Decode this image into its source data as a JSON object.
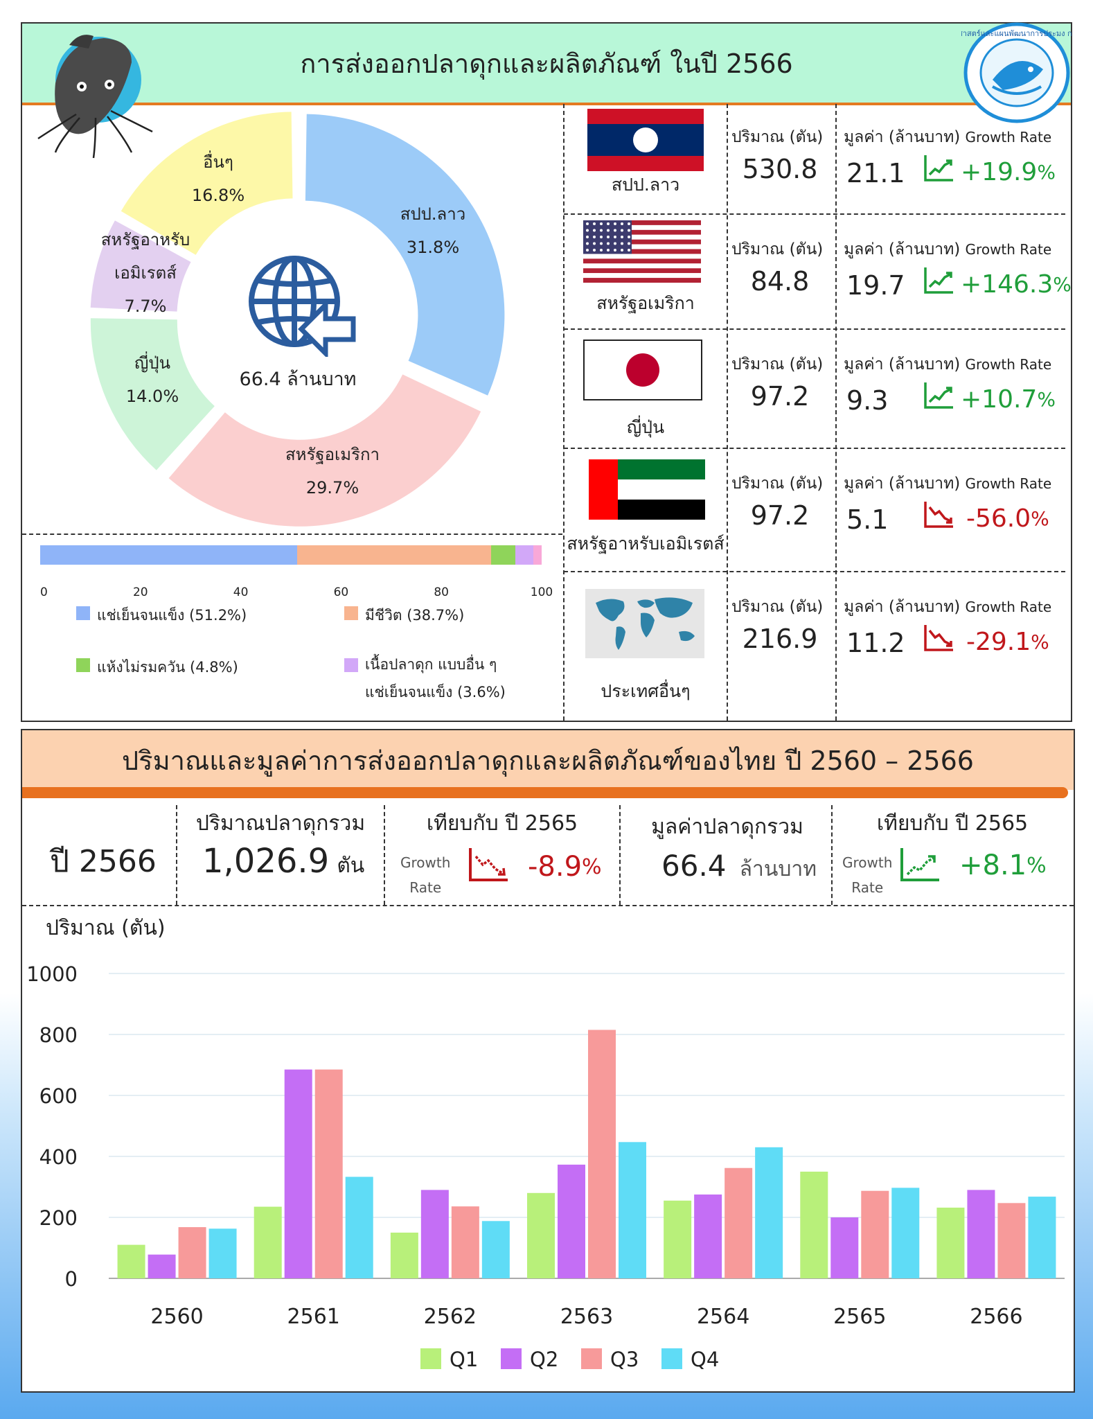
{
  "top": {
    "title": "การส่งออกปลาดุกและผลิตภัณฑ์ ในปี 2566",
    "center_value": "66.4 ล้านบาท",
    "logo_text": "กองยุทธศาสตร์และแผนพัฒนาการประมง กรมประมง"
  },
  "donut": {
    "slices": [
      {
        "name": "สปป.ลาว",
        "value": 31.8,
        "label": "31.8%",
        "color": "#9ccbf8"
      },
      {
        "name": "สหรัฐอเมริกา",
        "value": 29.7,
        "label": "29.7%",
        "color": "#fbcfcf"
      },
      {
        "name": "ญี่ปุ่น",
        "value": 14.0,
        "label": "14.0%",
        "color": "#cdf4d8"
      },
      {
        "name": "สหรัฐอาหรับเอมิเรตส์",
        "value": 7.7,
        "label": "7.7%",
        "color": "#e3d0f0"
      },
      {
        "name": "อื่นๆ",
        "value": 16.8,
        "label": "16.8%",
        "color": "#fdf8a8"
      }
    ],
    "label_lines": {
      "laos": "สปป.ลาว",
      "usa": "สหรัฐอเมริกา",
      "japan": "ญี่ปุ่น",
      "uae_1": "สหรัฐอาหรับ",
      "uae_2": "เอมิเรตส์",
      "others": "อื่นๆ"
    }
  },
  "stacked_bar": {
    "segments": [
      {
        "label": "แช่เย็นจนแข็ง (51.2%)",
        "value": 51.2,
        "color": "#8fb4f8"
      },
      {
        "label": "มีชีวิต (38.7%)",
        "value": 38.7,
        "color": "#f8b48f"
      },
      {
        "label": "แห้งไม่รมควัน (4.8%)",
        "value": 4.8,
        "color": "#8fd45a"
      },
      {
        "label": "เนื้อปลาดุก แบบอื่น ๆ",
        "label2": "แช่เย็นจนแข็ง (3.6%)",
        "value": 3.6,
        "color": "#d2a8f8"
      },
      {
        "value": 1.7,
        "color": "#f8a8d8"
      }
    ],
    "ticks": [
      "0",
      "20",
      "40",
      "60",
      "80",
      "100"
    ]
  },
  "headers": {
    "qty": "ปริมาณ (ตัน)",
    "val": "มูลค่า (ล้านบาท)",
    "growth": "Growth Rate"
  },
  "countries": [
    {
      "name": "สปป.ลาว",
      "qty": "530.8",
      "val": "21.1",
      "growth": "+19.9",
      "up": true
    },
    {
      "name": "สหรัฐอเมริกา",
      "qty": "84.8",
      "val": "19.7",
      "growth": "+146.3",
      "up": true
    },
    {
      "name": "ญี่ปุ่น",
      "qty": "97.2",
      "val": "9.3",
      "growth": "+10.7",
      "up": true
    },
    {
      "name": "สหรัฐอาหรับเอมิเรตส์",
      "qty": "97.2",
      "val": "5.1",
      "growth": "-56.0",
      "up": false
    },
    {
      "name": "ประเทศอื่นๆ",
      "qty": "216.9",
      "val": "11.2",
      "growth": "-29.1",
      "up": false
    }
  ],
  "pct": "%",
  "bottom": {
    "title": "ปริมาณและมูลค่าการส่งออกปลาดุกและผลิตภัณฑ์ของไทย ปี 2560 – 2566",
    "year_label": "ปี 2566",
    "total_qty_label": "ปริมาณปลาดุกรวม",
    "total_qty": "1,026.9",
    "total_qty_unit": "ตัน",
    "compare_label": "เทียบกับ ปี 2565",
    "growth_word": "Growth",
    "rate_word": "Rate",
    "qty_growth": "-8.9",
    "total_val_label": "มูลค่าปลาดุกรวม",
    "total_val": "66.4",
    "total_val_unit": "ล้านบาท",
    "val_growth": "+8.1"
  },
  "chart_data": {
    "type": "bar",
    "title": "",
    "ylabel": "ปริมาณ (ตัน)",
    "xlabel": "",
    "categories": [
      "2560",
      "2561",
      "2562",
      "2563",
      "2564",
      "2565",
      "2566"
    ],
    "ylim": [
      0,
      1000
    ],
    "yticks": [
      "0",
      "200",
      "400",
      "600",
      "800",
      "1000"
    ],
    "series": [
      {
        "name": "Q1",
        "color": "#b8f07a",
        "values": [
          110,
          235,
          150,
          280,
          255,
          350,
          232
        ]
      },
      {
        "name": "Q2",
        "color": "#c46ef5",
        "values": [
          78,
          685,
          290,
          373,
          275,
          200,
          290
        ]
      },
      {
        "name": "Q3",
        "color": "#f79a9a",
        "values": [
          168,
          685,
          236,
          815,
          362,
          287,
          247
        ]
      },
      {
        "name": "Q4",
        "color": "#5fdcf6",
        "values": [
          163,
          333,
          188,
          447,
          430,
          297,
          268
        ]
      }
    ],
    "legend": "bottom"
  }
}
